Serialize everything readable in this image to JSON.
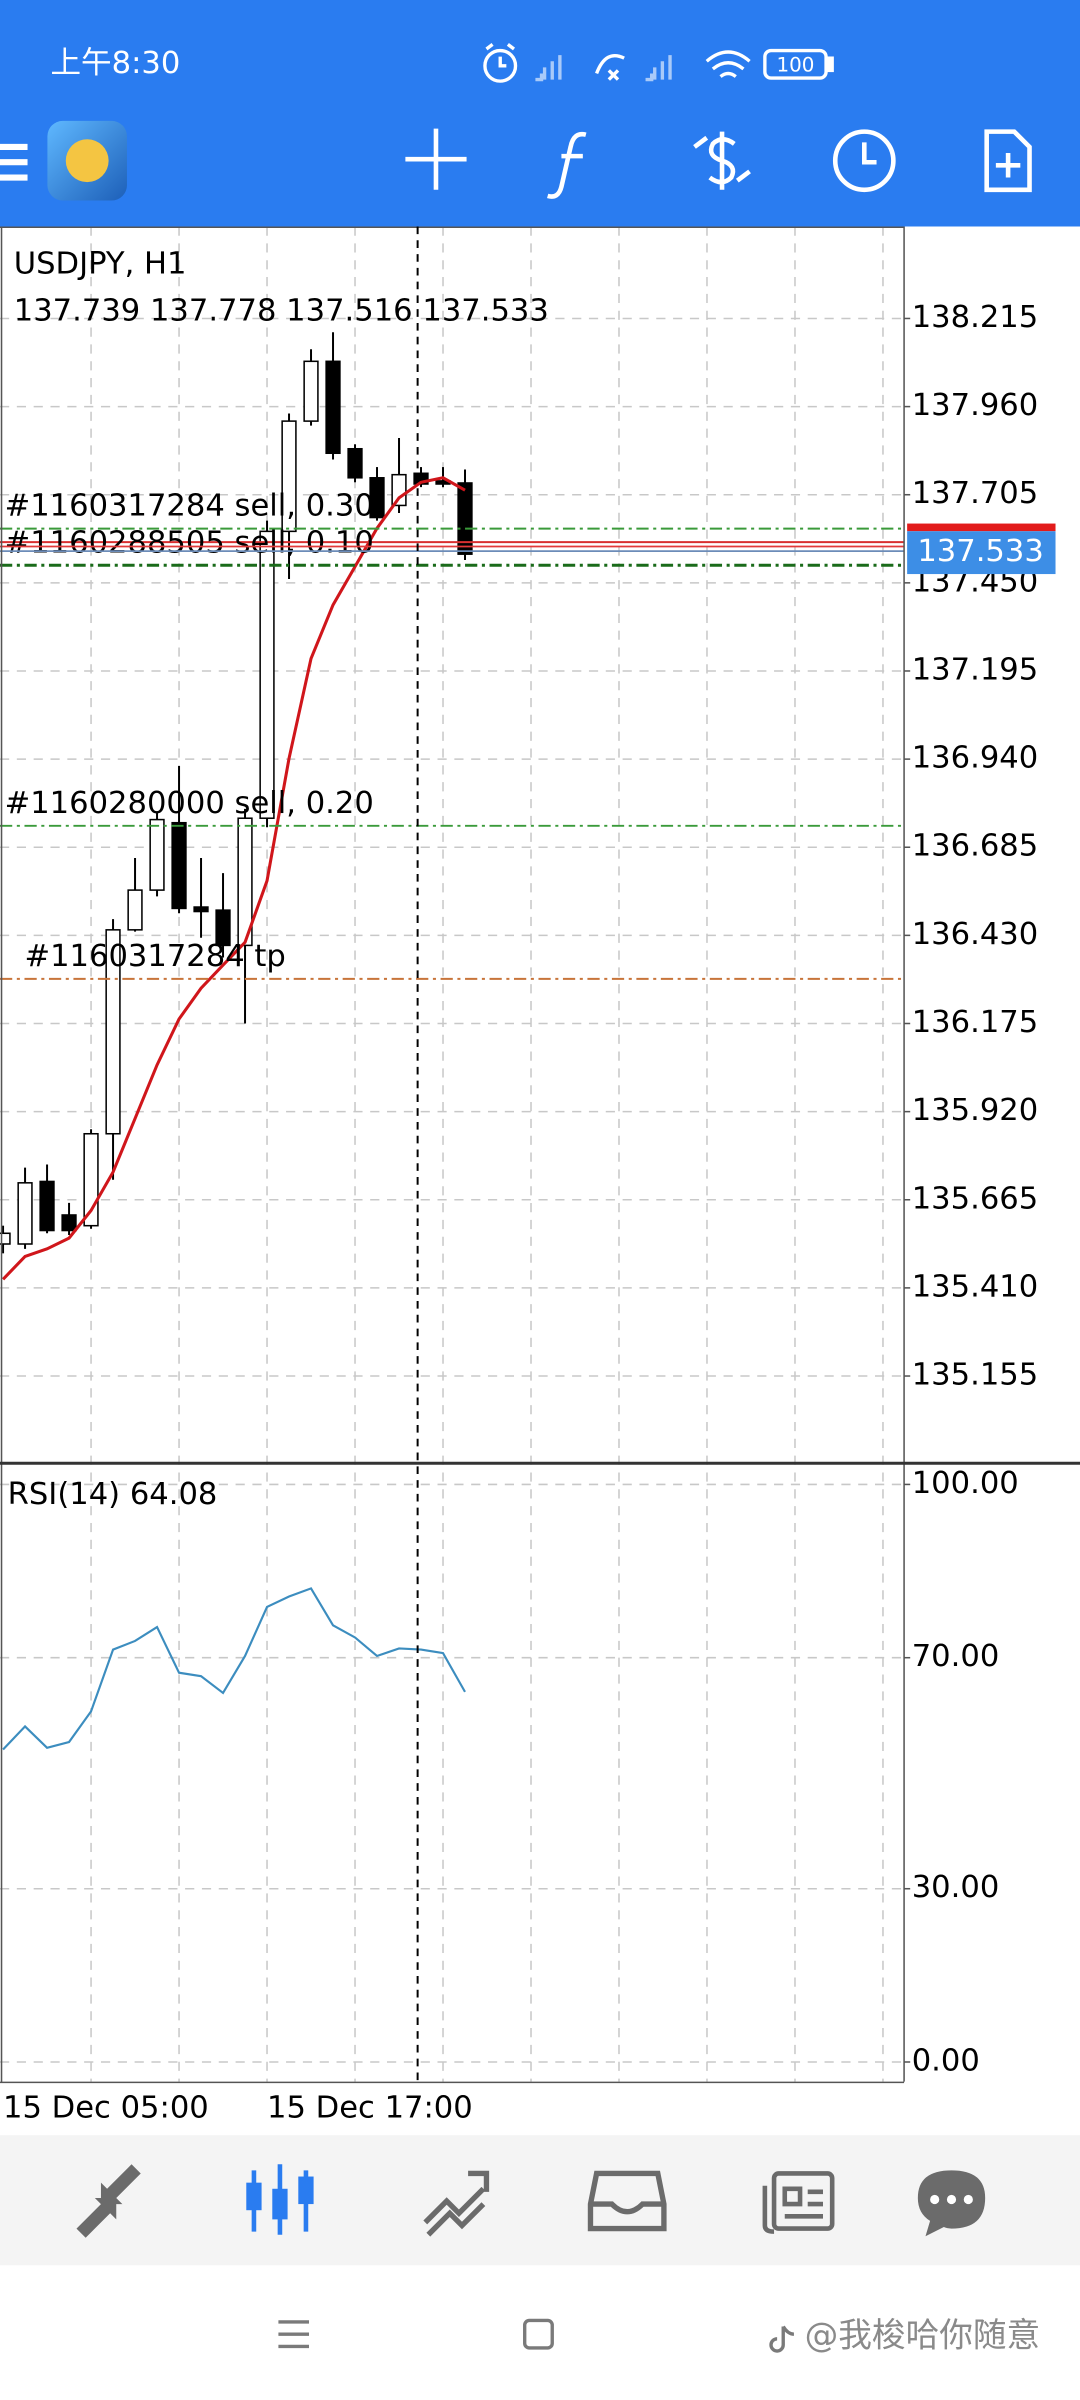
{
  "status_bar": {
    "time": "上午8:30",
    "battery": "100"
  },
  "chart_data": [
    {
      "type": "candlestick",
      "title": "USDJPY, H1",
      "subtitle": "137.739 137.778 137.516 137.533",
      "categories": [
        "15 Dec 05:00",
        null,
        null,
        null,
        null,
        null,
        null,
        null,
        null,
        null,
        null,
        null,
        "15 Dec 17:00",
        null,
        null,
        null,
        null,
        null,
        null,
        null,
        null,
        null
      ],
      "open": [
        135.537,
        135.537,
        135.718,
        135.621,
        135.59,
        135.856,
        136.446,
        136.561,
        136.756,
        136.512,
        136.503,
        136.401,
        136.769,
        137.599,
        137.918,
        138.091,
        137.838,
        137.754,
        137.674,
        137.767,
        137.745,
        137.739
      ],
      "high": [
        135.59,
        135.758,
        135.767,
        135.656,
        135.869,
        136.477,
        136.654,
        136.787,
        136.92,
        136.654,
        136.61,
        136.796,
        137.63,
        137.94,
        138.126,
        138.175,
        137.851,
        137.785,
        137.869,
        137.785,
        137.785,
        137.778
      ],
      "low": [
        135.51,
        135.523,
        135.568,
        135.563,
        135.581,
        135.723,
        136.441,
        136.543,
        136.494,
        136.423,
        136.366,
        136.175,
        136.743,
        137.461,
        137.905,
        137.807,
        137.741,
        137.63,
        137.652,
        137.727,
        137.727,
        137.516
      ],
      "close": [
        135.568,
        135.714,
        135.576,
        135.576,
        135.856,
        136.446,
        136.561,
        136.765,
        136.508,
        136.499,
        136.401,
        136.769,
        137.599,
        137.918,
        138.091,
        137.825,
        137.754,
        137.639,
        137.763,
        137.736,
        137.736,
        137.533
      ],
      "up_color": "#ffffff",
      "down_color": "#000000",
      "ma_color": "#d0161b",
      "ma_values": [
        135.435,
        135.501,
        135.523,
        135.554,
        135.634,
        135.745,
        135.9,
        136.055,
        136.188,
        136.277,
        136.344,
        136.41,
        136.588,
        136.942,
        137.231,
        137.386,
        137.497,
        137.608,
        137.696,
        137.741,
        137.754,
        137.718
      ],
      "orders": [
        {
          "label": "#1160317284 sell, 0.30",
          "price": 137.607,
          "color": "#3a9a3a",
          "line": "dashdot"
        },
        {
          "label": "#1160288505 sell, 0.10",
          "price": 137.568,
          "color": "#d83030",
          "line": "solid"
        },
        {
          "label": "#1160280000 sell, 0.20",
          "price": 136.747,
          "color": "#3a9a3a",
          "line": "dashdot"
        },
        {
          "label": "#1160317284 tp",
          "price": 136.304,
          "color": "#c8743a",
          "line": "dashdot"
        }
      ],
      "levels": [
        {
          "price": 137.501,
          "color": "#1a6b1a"
        }
      ],
      "ylim": [
        134.907,
        138.481
      ],
      "yticks": [
        138.215,
        {
          "value": 137.96,
          "label": "137.960"
        },
        137.705,
        {
          "value": 137.45,
          "label": "137.450"
        },
        137.195,
        {
          "value": 136.94,
          "label": "136.940"
        },
        136.685,
        {
          "value": 136.43,
          "label": "136.430"
        },
        136.175,
        {
          "value": 135.92,
          "label": "135.920"
        },
        135.665,
        {
          "value": 135.41,
          "label": "135.410"
        },
        135.155
      ],
      "grid": true
    },
    {
      "type": "line",
      "title": "RSI(14) 64.08",
      "values": [
        54.1,
        58.1,
        54.4,
        55.4,
        60.7,
        71.4,
        72.9,
        75.3,
        67.4,
        66.8,
        63.9,
        70.3,
        78.8,
        80.6,
        82.0,
        75.6,
        73.5,
        70.3,
        71.6,
        71.4,
        70.8,
        64.08
      ],
      "color": "#3c8dbf",
      "ylim": [
        -3.4,
        103.4
      ],
      "yticks": [
        {
          "value": 100,
          "label": "100.00"
        },
        {
          "value": 70,
          "label": "70.00"
        },
        {
          "value": 30,
          "label": "30.00"
        },
        {
          "value": 0,
          "label": "0.00"
        }
      ],
      "grid": true
    }
  ],
  "watermark": "@我梭哈你随意"
}
